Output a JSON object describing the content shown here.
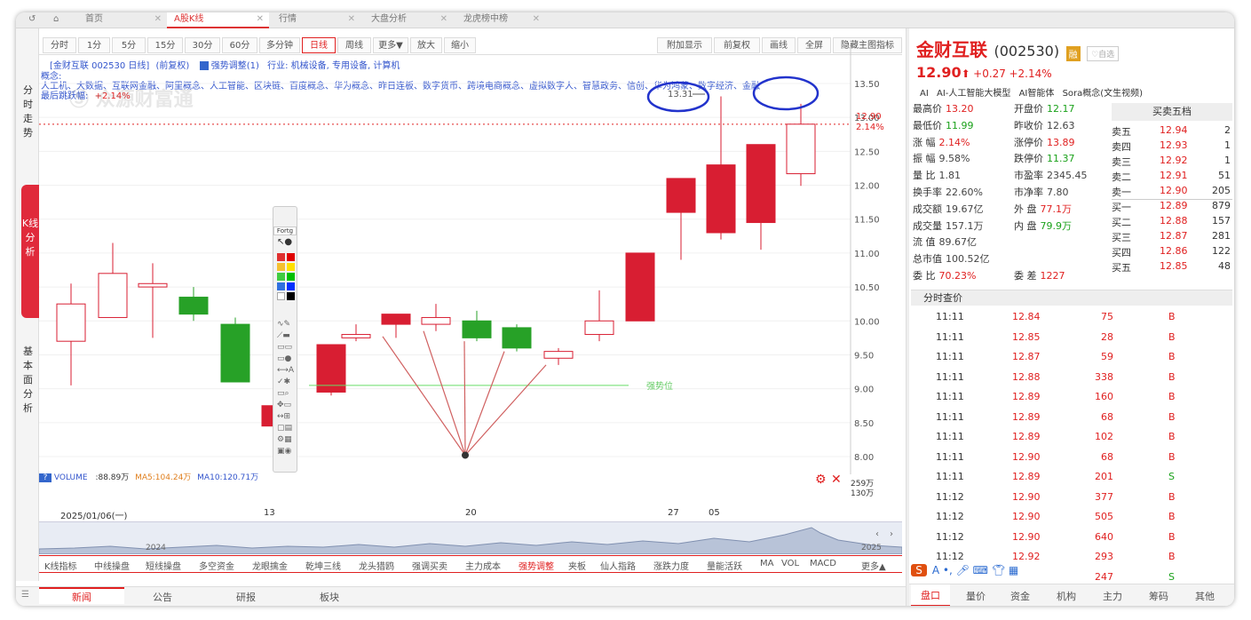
{
  "tabs": [
    "首页",
    "A股K线",
    "行情",
    "大盘分析",
    "龙虎榜中榜"
  ],
  "rail": {
    "timeshare": "分时走势",
    "kline": "K线分析",
    "fundamentals": "基本面分析"
  },
  "toolbar": {
    "left": [
      "分时",
      "1分",
      "5分",
      "15分",
      "30分",
      "60分",
      "多分钟",
      "日线",
      "周线",
      "更多▼",
      "放大",
      "缩小"
    ],
    "right": [
      "附加显示",
      "前复权",
      "画线",
      "全屏",
      "隐藏主图指标"
    ]
  },
  "info": {
    "name": "[金财互联 002530 日线]",
    "adjust": "(前复权)",
    "indicator": "强势调整(1)",
    "industry": "行业: 机械设备, 专用设备, 计算机",
    "concept_label": "概念:",
    "concepts": "人工机、大数据、互联网金融、阿里概念、人工智能、区块链、百度概念、华为概念、昨日连板、数字货币、跨境电商概念、虚拟数字人、智慧政务、信创、华为鸿蒙、数字经济、金融",
    "last_label": "最后跳跃幅:",
    "last_value": "+2.14%",
    "watermark": "Ⓢ 众源财富通"
  },
  "annotations": {
    "peak": "13.31",
    "support": "强势位"
  },
  "y_axis": [
    "13.50",
    "13.00",
    "12.50",
    "12.00",
    "11.50",
    "11.00",
    "10.50",
    "10.00",
    "9.50",
    "9.00",
    "8.50",
    "8.00"
  ],
  "price_tag": {
    "price": "12.90",
    "pct": "2.14%"
  },
  "volume": {
    "label": "VOLUME",
    "value": ":88.89万",
    "ma5": "MA5:104.24万",
    "ma10": "MA10:120.71万",
    "axis_top": "259万",
    "axis_mid": "130万"
  },
  "x_axis": {
    "start": "2025/01/06(一)",
    "t13": "13",
    "t20": "20",
    "t27": "27",
    "t05": "05"
  },
  "overview": {
    "left": "2024",
    "right": "2025"
  },
  "bottom_indicators": [
    "K线指标",
    "中线操盘",
    "短线操盘",
    "多空资金",
    "龙眼擒金",
    "乾坤三线",
    "龙头猎鸥",
    "强调买卖",
    "主力成本",
    "强势调整",
    "夹板",
    "仙人指路",
    "涨跌力度",
    "量能活跃",
    "MA",
    "VOL",
    "MACD",
    "更多▲"
  ],
  "bottom_tabs": [
    "新闻",
    "公告",
    "研报",
    "板块"
  ],
  "stock": {
    "name": "金财互联",
    "code": "(002530)",
    "tag": "融",
    "follow": "自选",
    "price": "12.90",
    "arrow": "⬆",
    "change": "+0.27",
    "pct": "+2.14%"
  },
  "stock_tags": [
    "AI",
    "AI-人工智能大模型",
    "AI智能体",
    "Sora概念(文生视频)"
  ],
  "stats": [
    {
      "k": "最高价",
      "v": "13.20",
      "c": "red"
    },
    {
      "k": "开盘价",
      "v": "12.17",
      "c": "green"
    },
    {
      "k": "最低价",
      "v": "11.99",
      "c": "green"
    },
    {
      "k": "昨收价",
      "v": "12.63",
      "c": "plain"
    },
    {
      "k": "涨  幅",
      "v": "2.14%",
      "c": "red"
    },
    {
      "k": "涨停价",
      "v": "13.89",
      "c": "red"
    },
    {
      "k": "振  幅",
      "v": "9.58%",
      "c": "plain"
    },
    {
      "k": "跌停价",
      "v": "11.37",
      "c": "green"
    },
    {
      "k": "量  比",
      "v": "1.81",
      "c": "plain"
    },
    {
      "k": "市盈率",
      "v": "2345.45",
      "c": "plain"
    },
    {
      "k": "换手率",
      "v": "22.60%",
      "c": "plain"
    },
    {
      "k": "市净率",
      "v": "7.80",
      "c": "plain"
    },
    {
      "k": "成交额",
      "v": "19.67亿",
      "c": "plain"
    },
    {
      "k": "外  盘",
      "v": "77.1万",
      "c": "red"
    },
    {
      "k": "成交量",
      "v": "157.1万",
      "c": "plain"
    },
    {
      "k": "内  盘",
      "v": "79.9万",
      "c": "green"
    },
    {
      "k": "流  值",
      "v": "89.67亿",
      "c": "plain"
    },
    {
      "k": "",
      "v": "",
      "c": "plain"
    },
    {
      "k": "总市值",
      "v": "100.52亿",
      "c": "plain"
    },
    {
      "k": "",
      "v": "",
      "c": "plain"
    },
    {
      "k": "委  比",
      "v": "70.23%",
      "c": "red"
    },
    {
      "k": "委  差",
      "v": "1227",
      "c": "red"
    }
  ],
  "orderbook": {
    "title": "买卖五档",
    "rows": [
      {
        "l": "卖五",
        "p": "12.94",
        "v": "2"
      },
      {
        "l": "卖四",
        "p": "12.93",
        "v": "1"
      },
      {
        "l": "卖三",
        "p": "12.92",
        "v": "1"
      },
      {
        "l": "卖二",
        "p": "12.91",
        "v": "51"
      },
      {
        "l": "卖一",
        "p": "12.90",
        "v": "205"
      },
      {
        "l": "买一",
        "p": "12.89",
        "v": "879"
      },
      {
        "l": "买二",
        "p": "12.88",
        "v": "157"
      },
      {
        "l": "买三",
        "p": "12.87",
        "v": "281"
      },
      {
        "l": "买四",
        "p": "12.86",
        "v": "122"
      },
      {
        "l": "买五",
        "p": "12.85",
        "v": "48"
      }
    ]
  },
  "trades_title": "分时查价",
  "trades": [
    {
      "t": "11:11",
      "p": "12.84",
      "v": "75",
      "d": "B"
    },
    {
      "t": "11:11",
      "p": "12.85",
      "v": "28",
      "d": "B"
    },
    {
      "t": "11:11",
      "p": "12.87",
      "v": "59",
      "d": "B"
    },
    {
      "t": "11:11",
      "p": "12.88",
      "v": "338",
      "d": "B"
    },
    {
      "t": "11:11",
      "p": "12.89",
      "v": "160",
      "d": "B"
    },
    {
      "t": "11:11",
      "p": "12.89",
      "v": "68",
      "d": "B"
    },
    {
      "t": "11:11",
      "p": "12.89",
      "v": "102",
      "d": "B"
    },
    {
      "t": "11:11",
      "p": "12.90",
      "v": "68",
      "d": "B"
    },
    {
      "t": "11:11",
      "p": "12.89",
      "v": "201",
      "d": "S"
    },
    {
      "t": "11:12",
      "p": "12.90",
      "v": "377",
      "d": "B"
    },
    {
      "t": "11:12",
      "p": "12.90",
      "v": "505",
      "d": "B"
    },
    {
      "t": "11:12",
      "p": "12.90",
      "v": "640",
      "d": "B"
    },
    {
      "t": "11:12",
      "p": "12.92",
      "v": "293",
      "d": "B"
    },
    {
      "t": "",
      "p": "",
      "v": "247",
      "d": "S"
    }
  ],
  "right_tabs": [
    "盘口",
    "量价",
    "资金",
    "机构",
    "主力",
    "筹码",
    "其他"
  ],
  "drawing_palette": {
    "title": "Fortg"
  },
  "candles": [
    {
      "o": 9.7,
      "h": 10.55,
      "l": 9.05,
      "c": 10.25
    },
    {
      "o": 10.05,
      "h": 11.15,
      "l": 10.05,
      "c": 10.7
    },
    {
      "o": 10.5,
      "h": 10.85,
      "l": 9.75,
      "c": 10.55
    },
    {
      "o": 10.35,
      "h": 10.5,
      "l": 10.0,
      "c": 10.1
    },
    {
      "o": 9.95,
      "h": 10.05,
      "l": 9.1,
      "c": 9.1
    },
    {
      "o": 8.45,
      "h": 8.85,
      "l": 8.35,
      "c": 8.75
    },
    {
      "o": 8.95,
      "h": 9.65,
      "l": 8.9,
      "c": 9.65
    },
    {
      "o": 9.75,
      "h": 9.95,
      "l": 9.7,
      "c": 9.8
    },
    {
      "o": 9.95,
      "h": 10.1,
      "l": 9.75,
      "c": 10.1
    },
    {
      "o": 9.95,
      "h": 10.25,
      "l": 9.85,
      "c": 10.05
    },
    {
      "o": 10.0,
      "h": 10.15,
      "l": 9.7,
      "c": 9.75
    },
    {
      "o": 9.9,
      "h": 9.95,
      "l": 9.55,
      "c": 9.6
    },
    {
      "o": 9.45,
      "h": 9.6,
      "l": 9.35,
      "c": 9.55
    },
    {
      "o": 9.8,
      "h": 10.45,
      "l": 9.7,
      "c": 10.0
    },
    {
      "o": 10.0,
      "h": 11.0,
      "l": 10.0,
      "c": 11.0
    },
    {
      "o": 11.6,
      "h": 12.1,
      "l": 10.9,
      "c": 12.1
    },
    {
      "o": 11.3,
      "h": 13.31,
      "l": 11.2,
      "c": 12.3
    },
    {
      "o": 11.45,
      "h": 12.6,
      "l": 11.05,
      "c": 12.6
    },
    {
      "o": 12.17,
      "h": 13.2,
      "l": 11.99,
      "c": 12.9
    }
  ]
}
